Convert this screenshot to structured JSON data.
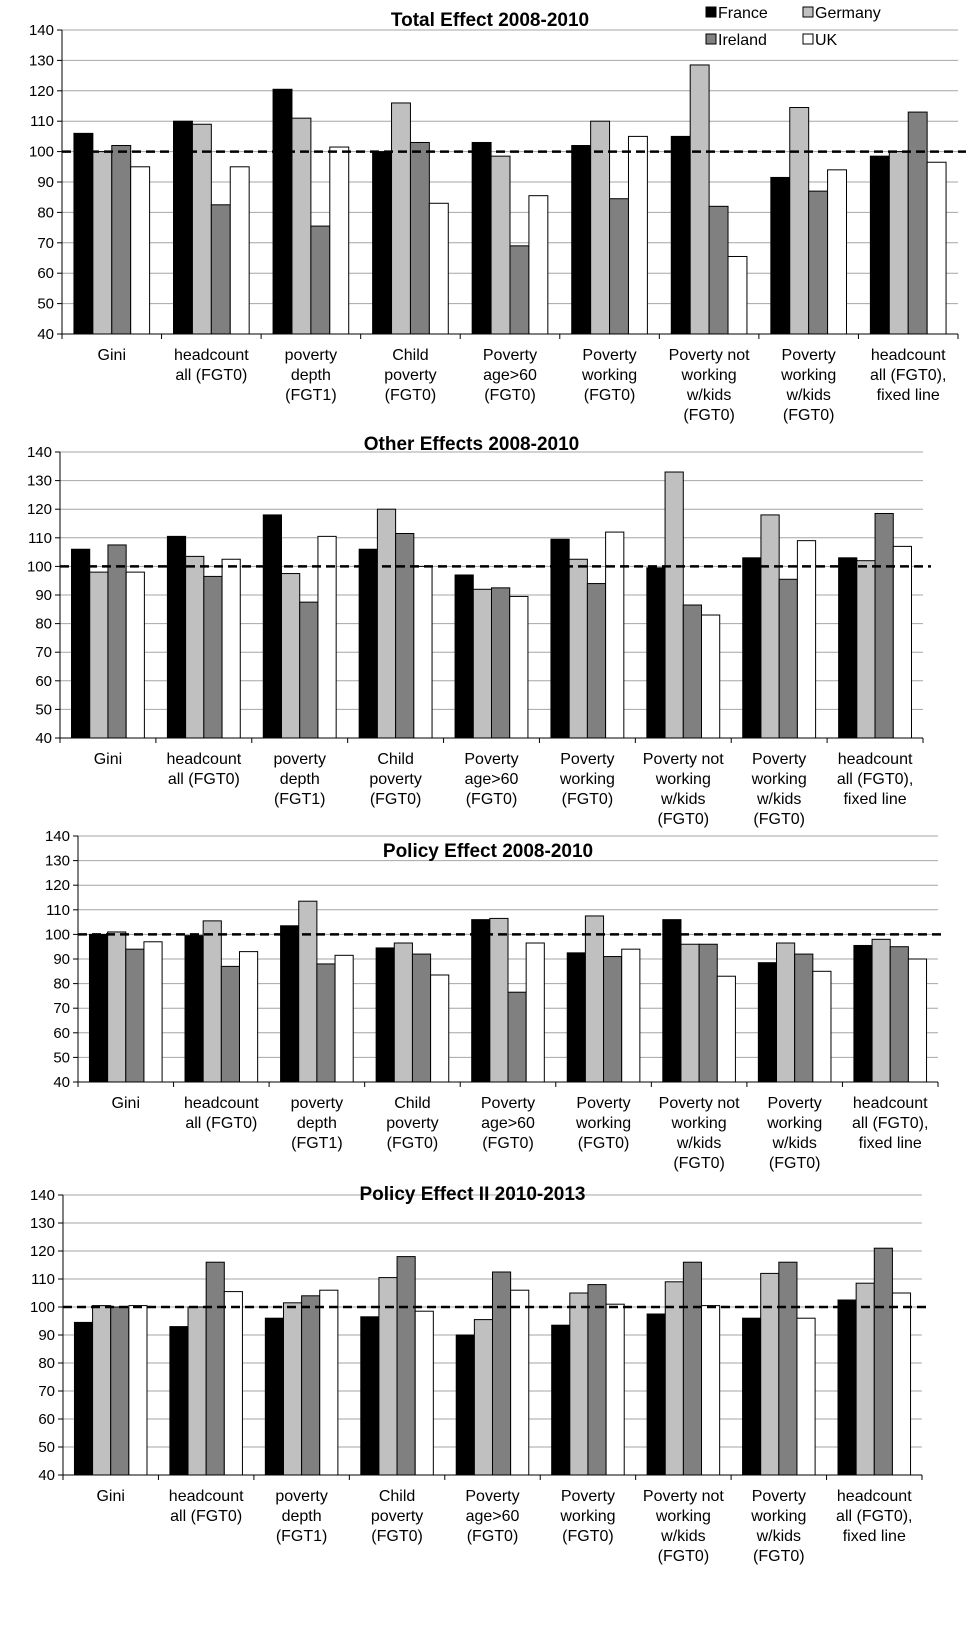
{
  "legend": [
    {
      "name": "France",
      "color": "#000000"
    },
    {
      "name": "Germany",
      "color": "#c0c0c0"
    },
    {
      "name": "Ireland",
      "color": "#808080"
    },
    {
      "name": "UK",
      "color": "#ffffff"
    }
  ],
  "chart_data": [
    {
      "type": "bar",
      "title": "Total Effect  2008-2010",
      "categories": [
        [
          "Gini"
        ],
        [
          "headcount",
          "all (FGT0)"
        ],
        [
          "poverty",
          "depth",
          "(FGT1)"
        ],
        [
          "Child",
          "poverty",
          "(FGT0)"
        ],
        [
          "Poverty",
          "age>60",
          "(FGT0)"
        ],
        [
          "Poverty",
          "working",
          "(FGT0)"
        ],
        [
          "Poverty not",
          "working",
          "w/kids",
          "(FGT0)"
        ],
        [
          "Poverty",
          "working",
          "w/kids",
          "(FGT0)"
        ],
        [
          "headcount",
          "all (FGT0),",
          "fixed line"
        ]
      ],
      "yticks": [
        40,
        50,
        60,
        70,
        80,
        90,
        100,
        110,
        120,
        130,
        140
      ],
      "ylim": [
        40,
        140
      ],
      "reference_line": 100,
      "grid": true,
      "series": [
        {
          "name": "France",
          "values": [
            106,
            110,
            120.5,
            100,
            103,
            102,
            105,
            91.5,
            98.5
          ]
        },
        {
          "name": "Germany",
          "values": [
            100,
            109,
            111,
            116,
            98.5,
            110,
            128.5,
            114.5,
            100
          ]
        },
        {
          "name": "Ireland",
          "values": [
            102,
            82.5,
            75.5,
            103,
            69,
            84.5,
            82,
            87,
            113
          ]
        },
        {
          "name": "UK",
          "values": [
            95,
            95,
            101.5,
            83,
            85.5,
            105,
            65.5,
            94,
            96.5
          ]
        }
      ]
    },
    {
      "type": "bar",
      "title": "Other Effects 2008-2010",
      "categories": [
        [
          "Gini"
        ],
        [
          "headcount",
          "all (FGT0)"
        ],
        [
          "poverty",
          "depth",
          "(FGT1)"
        ],
        [
          "Child",
          "poverty",
          "(FGT0)"
        ],
        [
          "Poverty",
          "age>60",
          "(FGT0)"
        ],
        [
          "Poverty",
          "working",
          "(FGT0)"
        ],
        [
          "Poverty not",
          "working",
          "w/kids",
          "(FGT0)"
        ],
        [
          "Poverty",
          "working",
          "w/kids",
          "(FGT0)"
        ],
        [
          "headcount",
          "all (FGT0),",
          "fixed line"
        ]
      ],
      "yticks": [
        40,
        50,
        60,
        70,
        80,
        90,
        100,
        110,
        120,
        130,
        140
      ],
      "ylim": [
        40,
        140
      ],
      "reference_line": 100,
      "grid": true,
      "series": [
        {
          "name": "France",
          "values": [
            106,
            110.5,
            118,
            106,
            97,
            109.5,
            99.5,
            103,
            103
          ]
        },
        {
          "name": "Germany",
          "values": [
            98,
            103.5,
            97.5,
            120,
            92,
            102.5,
            133,
            118,
            102
          ]
        },
        {
          "name": "Ireland",
          "values": [
            107.5,
            96.5,
            87.5,
            111.5,
            92.5,
            94,
            86.5,
            95.5,
            118.5
          ]
        },
        {
          "name": "UK",
          "values": [
            98,
            102.5,
            110.5,
            100,
            89.5,
            112,
            83,
            109,
            107
          ]
        }
      ]
    },
    {
      "type": "bar",
      "title": "Policy Effect 2008-2010",
      "categories": [
        [
          "Gini"
        ],
        [
          "headcount",
          "all (FGT0)"
        ],
        [
          "poverty",
          "depth",
          "(FGT1)"
        ],
        [
          "Child",
          "poverty",
          "(FGT0)"
        ],
        [
          "Poverty",
          "age>60",
          "(FGT0)"
        ],
        [
          "Poverty",
          "working",
          "(FGT0)"
        ],
        [
          "Poverty not",
          "working",
          "w/kids",
          "(FGT0)"
        ],
        [
          "Poverty",
          "working",
          "w/kids",
          "(FGT0)"
        ],
        [
          "headcount",
          "all (FGT0),",
          "fixed line"
        ]
      ],
      "yticks": [
        40,
        50,
        60,
        70,
        80,
        90,
        100,
        110,
        120,
        130,
        140
      ],
      "ylim": [
        40,
        140
      ],
      "reference_line": 100,
      "grid": true,
      "series": [
        {
          "name": "France",
          "values": [
            100,
            99.5,
            103.5,
            94.5,
            106,
            92.5,
            106,
            88.5,
            95.5
          ]
        },
        {
          "name": "Germany",
          "values": [
            101,
            105.5,
            113.5,
            96.5,
            106.5,
            107.5,
            96,
            96.5,
            98
          ]
        },
        {
          "name": "Ireland",
          "values": [
            94,
            87,
            88,
            92,
            76.5,
            91,
            96,
            92,
            95
          ]
        },
        {
          "name": "UK",
          "values": [
            97,
            93,
            91.5,
            83.5,
            96.5,
            94,
            83,
            85,
            90
          ]
        }
      ]
    },
    {
      "type": "bar",
      "title": "Policy Effect II 2010-2013",
      "categories": [
        [
          "Gini"
        ],
        [
          "headcount",
          "all (FGT0)"
        ],
        [
          "poverty",
          "depth",
          "(FGT1)"
        ],
        [
          "Child",
          "poverty",
          "(FGT0)"
        ],
        [
          "Poverty",
          "age>60",
          "(FGT0)"
        ],
        [
          "Poverty",
          "working",
          "(FGT0)"
        ],
        [
          "Poverty not",
          "working",
          "w/kids",
          "(FGT0)"
        ],
        [
          "Poverty",
          "working",
          "w/kids",
          "(FGT0)"
        ],
        [
          "headcount",
          "all (FGT0),",
          "fixed line"
        ]
      ],
      "yticks": [
        40,
        50,
        60,
        70,
        80,
        90,
        100,
        110,
        120,
        130,
        140
      ],
      "ylim": [
        40,
        140
      ],
      "reference_line": 100,
      "grid": true,
      "series": [
        {
          "name": "France",
          "values": [
            94.5,
            93,
            96,
            96.5,
            90,
            93.5,
            97.5,
            96,
            102.5
          ]
        },
        {
          "name": "Germany",
          "values": [
            100.5,
            100,
            101.5,
            110.5,
            95.5,
            105,
            109,
            112,
            108.5
          ]
        },
        {
          "name": "Ireland",
          "values": [
            100,
            116,
            104,
            118,
            112.5,
            108,
            116,
            116,
            121
          ]
        },
        {
          "name": "UK",
          "values": [
            100.5,
            105.5,
            106,
            98.5,
            106,
            101,
            100.5,
            96,
            105
          ]
        }
      ]
    }
  ]
}
